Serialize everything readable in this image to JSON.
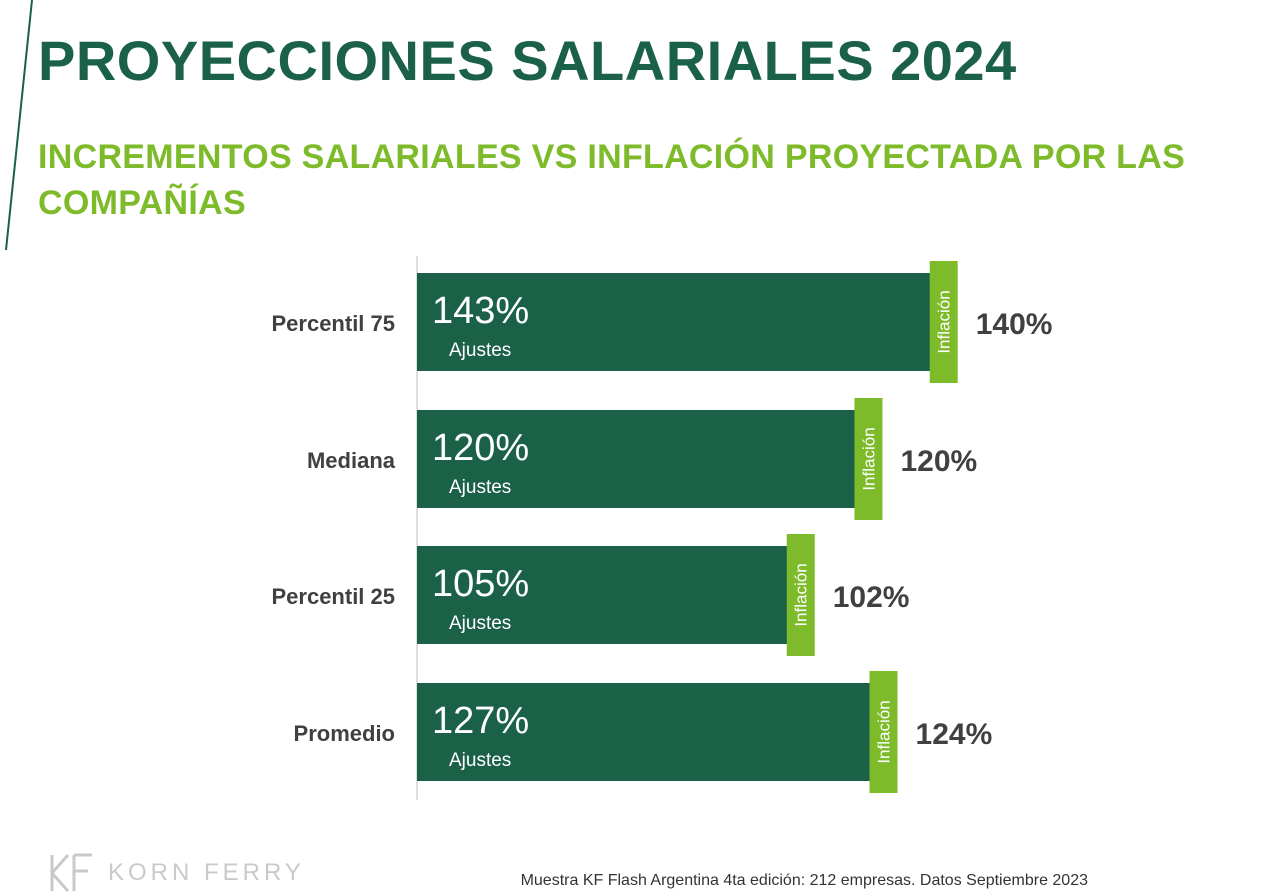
{
  "title": "PROYECCIONES SALARIALES 2024",
  "subtitle": "INCREMENTOS SALARIALES VS INFLACIÓN PROYECTADA POR LAS COMPAÑÍAS",
  "footnote": "Muestra KF Flash Argentina 4ta edición: 212 empresas. Datos Septiembre 2023",
  "logo": {
    "text": "KORN FERRY",
    "icon": "korn-ferry-logo-icon"
  },
  "colors": {
    "bar": "#1b6148",
    "marker": "#7dbb2a",
    "title": "#1b6148",
    "subtitle": "#7dbb2a"
  },
  "chart_data": {
    "type": "bar",
    "orientation": "horizontal",
    "categories": [
      "Percentil 75",
      "Mediana",
      "Percentil 25",
      "Promedio"
    ],
    "series": [
      {
        "name": "Ajustes",
        "values": [
          143,
          120,
          105,
          127
        ],
        "labels": [
          "143%",
          "120%",
          "105%",
          "127%"
        ]
      },
      {
        "name": "Inflación",
        "values": [
          140,
          120,
          102,
          124
        ],
        "labels": [
          "140%",
          "120%",
          "102%",
          "124%"
        ]
      }
    ],
    "xlim": [
      0,
      143
    ],
    "grid": false,
    "legend": "none"
  }
}
